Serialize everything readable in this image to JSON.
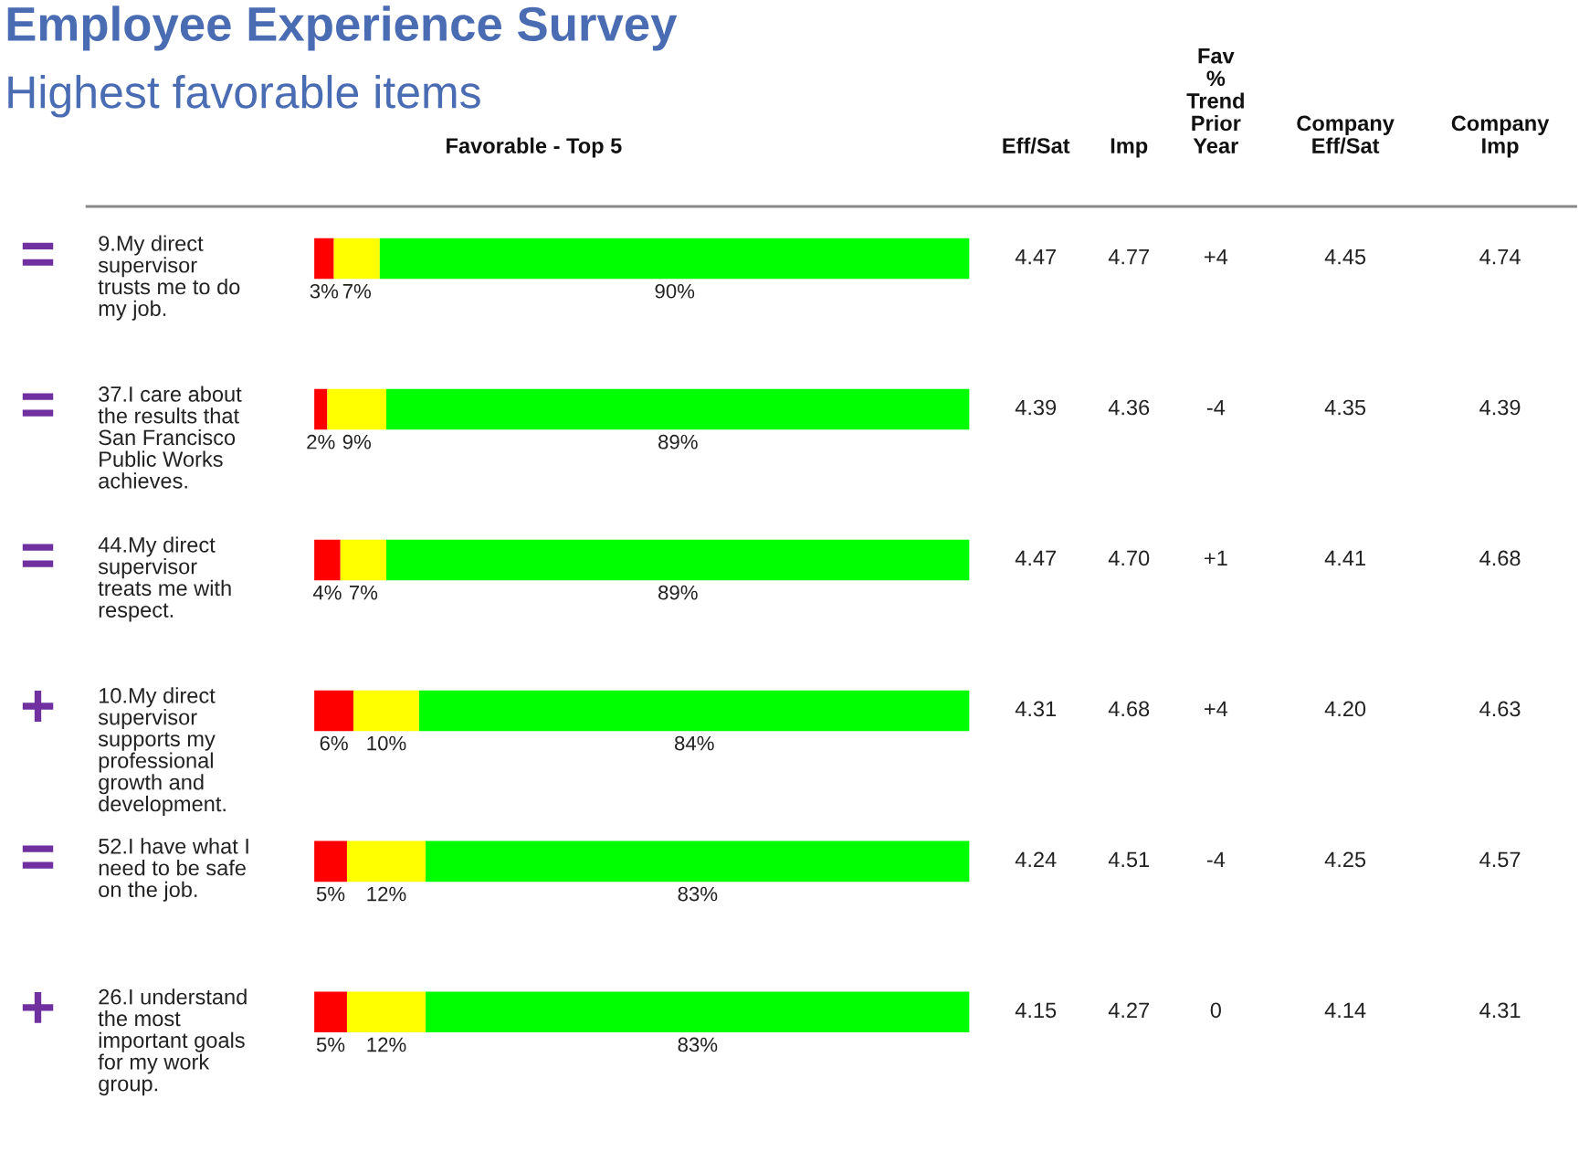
{
  "chart_data": {
    "type": "bar",
    "orientation": "horizontal",
    "stacked": true,
    "title": "Employee Experience Survey",
    "subtitle": "Highest favorable items",
    "categories": [
      "9.My direct\nsupervisor\ntrusts me to do\nmy job.",
      "37.I care about\nthe results that\nSan Francisco\nPublic Works\nachieves.",
      "44.My direct\nsupervisor\ntreats me with\nrespect.",
      "10.My direct\nsupervisor\nsupports my\nprofessional\ngrowth and\ndevelopment.",
      "52.I have what I\nneed to be safe\non the job.",
      "26.I understand\nthe most\nimportant goals\nfor my work\ngroup."
    ],
    "series": [
      {
        "color": "#ff0000",
        "values": [
          3,
          2,
          4,
          6,
          5,
          5
        ],
        "value_labels": [
          "3%",
          "2%",
          "4%",
          "6%",
          "5%",
          "5%"
        ]
      },
      {
        "color": "#ffff00",
        "values": [
          7,
          9,
          7,
          10,
          12,
          12
        ],
        "value_labels": [
          "7%",
          "9%",
          "7%",
          "10%",
          "12%",
          "12%"
        ]
      },
      {
        "color": "#00ff00",
        "values": [
          90,
          89,
          89,
          84,
          83,
          83
        ],
        "value_labels": [
          "90%",
          "89%",
          "89%",
          "84%",
          "83%",
          "83%"
        ]
      }
    ],
    "xlim": [
      0,
      100
    ],
    "annotations": [
      "Favorable - Top 5",
      "Eff/Sat",
      "Imp",
      "Fav\n%\nTrend\nPrior\nYear",
      "Company\nEff/Sat",
      "Company\nImp",
      "=",
      "4.47",
      "4.77",
      "+4",
      "4.45",
      "4.74",
      "=",
      "4.39",
      "4.36",
      "-4",
      "4.35",
      "4.39",
      "=",
      "4.47",
      "4.70",
      "+1",
      "4.41",
      "4.68",
      "+",
      "4.31",
      "4.68",
      "+4",
      "4.20",
      "4.63",
      "=",
      "4.24",
      "4.51",
      "-4",
      "4.25",
      "4.57",
      "+",
      "4.15",
      "4.27",
      "0",
      "4.14",
      "4.31"
    ]
  }
}
